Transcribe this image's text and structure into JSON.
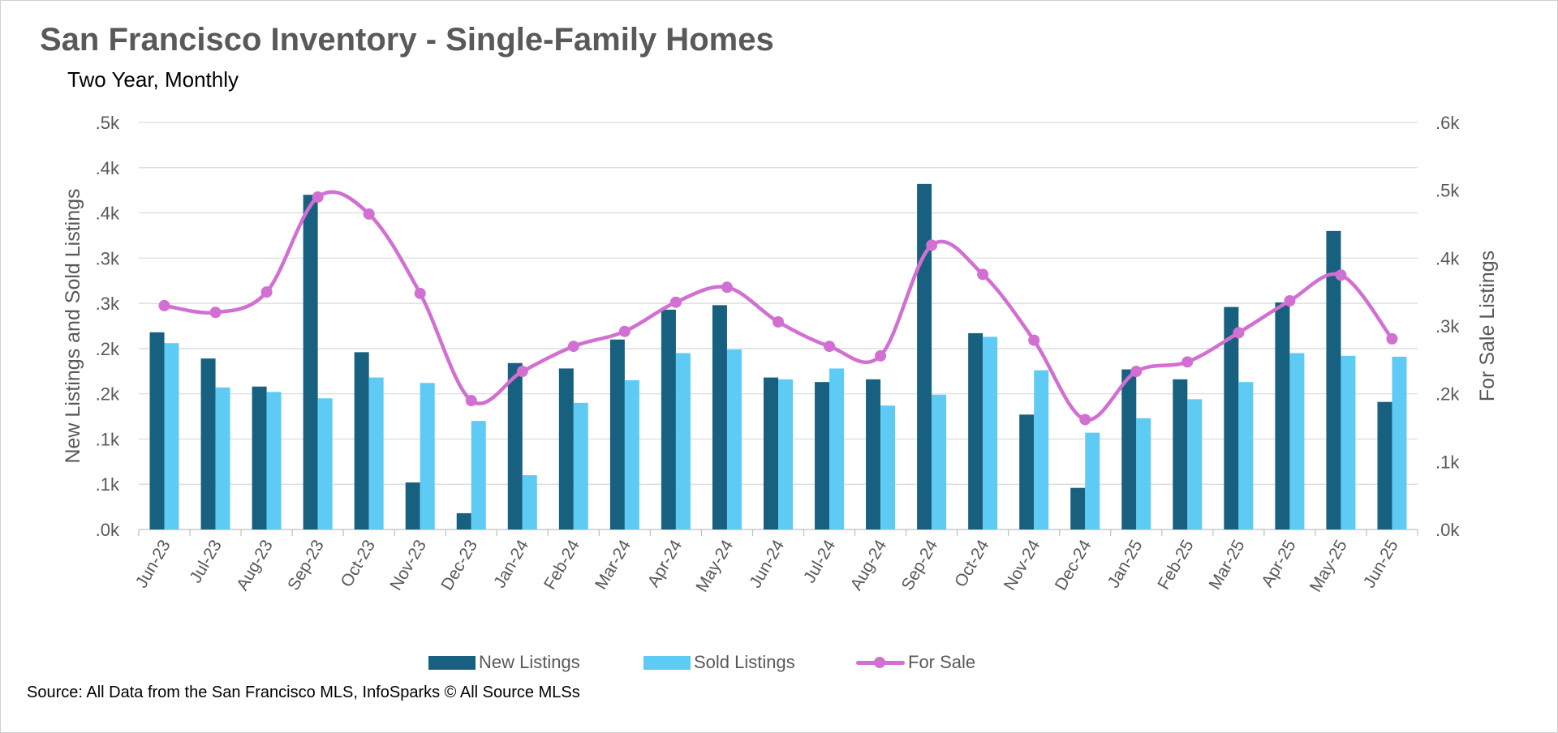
{
  "title": "San Francisco Inventory - Single-Family Homes",
  "subtitle": "Two Year, Monthly",
  "source": "Source: All Data from the San Francisco MLS, InfoSparks © All Source MLSs",
  "colors": {
    "new_listings": "#17607f",
    "sold_listings": "#5ecbf5",
    "for_sale": "#d16fd2",
    "axis_text": "#595959",
    "gridline": "#d9d9d9"
  },
  "chart_data": {
    "type": "bar",
    "categories": [
      "Jun-23",
      "Jul-23",
      "Aug-23",
      "Sep-23",
      "Oct-23",
      "Nov-23",
      "Dec-23",
      "Jan-24",
      "Feb-24",
      "Mar-24",
      "Apr-24",
      "May-24",
      "Jun-24",
      "Jul-24",
      "Aug-24",
      "Sep-24",
      "Oct-24",
      "Nov-24",
      "Dec-24",
      "Jan-25",
      "Feb-25",
      "Mar-25",
      "Apr-25",
      "May-25",
      "Jun-25"
    ],
    "xlabel": "",
    "ylabel": "New Listings and Sold Listings",
    "y2label": "For Sale Listings",
    "ylim": [
      0,
      0.45
    ],
    "y2lim": [
      0,
      0.6
    ],
    "y_tick_labels": [
      ".0k",
      ".1k",
      ".1k",
      ".2k",
      ".2k",
      ".3k",
      ".3k",
      ".4k",
      ".4k",
      ".5k"
    ],
    "y2_tick_labels": [
      ".0k",
      ".1k",
      ".2k",
      ".3k",
      ".4k",
      ".5k",
      ".6k"
    ],
    "grid": true,
    "legend_position": "bottom",
    "series": [
      {
        "name": "New Listings",
        "type": "bar",
        "axis": "left",
        "values": [
          0.218,
          0.189,
          0.158,
          0.37,
          0.196,
          0.052,
          0.018,
          0.184,
          0.178,
          0.21,
          0.243,
          0.248,
          0.168,
          0.163,
          0.166,
          0.382,
          0.217,
          0.127,
          0.046,
          0.177,
          0.166,
          0.246,
          0.251,
          0.33,
          0.141
        ]
      },
      {
        "name": "Sold Listings",
        "type": "bar",
        "axis": "left",
        "values": [
          0.206,
          0.157,
          0.152,
          0.145,
          0.168,
          0.162,
          0.12,
          0.06,
          0.14,
          0.165,
          0.195,
          0.199,
          0.166,
          0.178,
          0.137,
          0.149,
          0.213,
          0.176,
          0.107,
          0.123,
          0.144,
          0.163,
          0.195,
          0.192,
          0.191
        ]
      },
      {
        "name": "For Sale",
        "type": "line",
        "axis": "right",
        "smooth": true,
        "values": [
          0.33,
          0.32,
          0.35,
          0.49,
          0.465,
          0.348,
          0.19,
          0.233,
          0.27,
          0.292,
          0.335,
          0.357,
          0.306,
          0.27,
          0.256,
          0.419,
          0.376,
          0.279,
          0.162,
          0.233,
          0.247,
          0.29,
          0.337,
          0.375,
          0.281
        ]
      }
    ]
  }
}
